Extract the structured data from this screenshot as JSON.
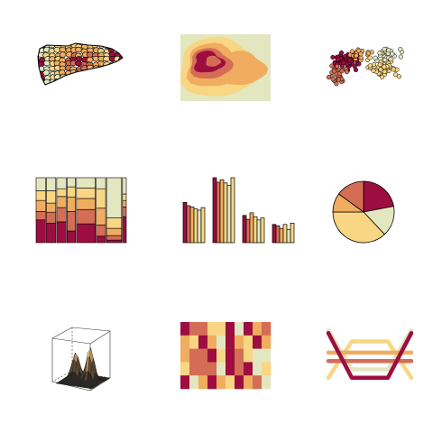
{
  "palette": [
    "#9E0D40",
    "#D46D55",
    "#F0AD60",
    "#F8D684",
    "#E3E7C0"
  ],
  "outline_color": "#000000",
  "chart_data": [
    {
      "type": "map",
      "panel": "choropleth-map",
      "grid_row": 0,
      "grid_col": 0,
      "value_range": [
        0,
        4
      ]
    },
    {
      "type": "heatmap",
      "panel": "filled-contour",
      "grid_row": 0,
      "grid_col": 1,
      "levels": 5
    },
    {
      "type": "scatter",
      "panel": "scatter-cloud",
      "grid_row": 0,
      "grid_col": 2,
      "groups": 5
    },
    {
      "type": "bar",
      "panel": "mosaic-plot",
      "grid_row": 1,
      "grid_col": 0,
      "columns": [
        {
          "share": 0.1,
          "segments": [
            0.35,
            0.13,
            0.17,
            0.15,
            0.2
          ]
        },
        {
          "share": 0.1,
          "segments": [
            0.3,
            0.17,
            0.14,
            0.19,
            0.2
          ]
        },
        {
          "share": 0.1,
          "segments": [
            0.32,
            0.22,
            0.17,
            0.12,
            0.17
          ]
        },
        {
          "share": 0.09,
          "segments": [
            0.18,
            0.3,
            0.22,
            0.16,
            0.14
          ]
        },
        {
          "share": 0.2,
          "segments": [
            0.29,
            0.22,
            0.17,
            0.16,
            0.16
          ]
        },
        {
          "share": 0.1,
          "segments": [
            0.1,
            0.17,
            0.26,
            0.3,
            0.17
          ]
        },
        {
          "share": 0.16,
          "segments": [
            0.04,
            0.07,
            0.11,
            0.16,
            0.62
          ]
        },
        {
          "share": 0.04,
          "segments": [
            0.4,
            0.15,
            0.1,
            0.1,
            0.25
          ]
        }
      ]
    },
    {
      "type": "bar",
      "panel": "grouped-bars",
      "grid_row": 1,
      "grid_col": 1,
      "categories": [
        "1",
        "2",
        "3",
        "4"
      ],
      "series": [
        {
          "values": [
            0.62,
            1.0,
            0.42,
            0.28
          ]
        },
        {
          "values": [
            0.57,
            0.93,
            0.36,
            0.26
          ]
        },
        {
          "values": [
            0.55,
            0.97,
            0.46,
            0.22
          ]
        },
        {
          "values": [
            0.52,
            0.92,
            0.4,
            0.28
          ]
        },
        {
          "values": [
            0.5,
            0.88,
            0.35,
            0.2
          ]
        },
        {
          "values": [
            0.54,
            1.0,
            0.38,
            0.3
          ]
        }
      ]
    },
    {
      "type": "pie",
      "panel": "pie-chart",
      "grid_row": 1,
      "grid_col": 2,
      "values": [
        0.22,
        0.16,
        0.37,
        0.1,
        0.15
      ]
    },
    {
      "type": "surface",
      "panel": "perspective-surface",
      "grid_row": 2,
      "grid_col": 0,
      "peaks": 2
    },
    {
      "type": "heatmap",
      "panel": "image-grid",
      "grid_row": 2,
      "grid_col": 1,
      "rows": 5,
      "cols": 10,
      "cells": [
        [
          0,
          1,
          1,
          3,
          3,
          0,
          4,
          0,
          2,
          1
        ],
        [
          2,
          3,
          0,
          2,
          4,
          0,
          2,
          3,
          0,
          2
        ],
        [
          2,
          1,
          1,
          0,
          3,
          0,
          1,
          3,
          4,
          4
        ],
        [
          3,
          1,
          1,
          1,
          4,
          0,
          1,
          0,
          4,
          3
        ],
        [
          0,
          4,
          2,
          0,
          2,
          3,
          0,
          2,
          1,
          4
        ]
      ]
    },
    {
      "type": "line",
      "panel": "parallel-lines",
      "grid_row": 2,
      "grid_col": 2,
      "series": [
        {
          "values": [
            0.9,
            0.1,
            0.1,
            0.9
          ]
        },
        {
          "values": [
            0.4,
            0.4,
            0.4,
            0.4
          ]
        },
        {
          "values": [
            0.55,
            0.55,
            0.55,
            0.55
          ]
        },
        {
          "values": [
            0.1,
            0.75,
            0.75,
            0.1
          ]
        },
        {
          "values": [
            0.95,
            0.25,
            0.25,
            0.95
          ]
        }
      ]
    }
  ]
}
